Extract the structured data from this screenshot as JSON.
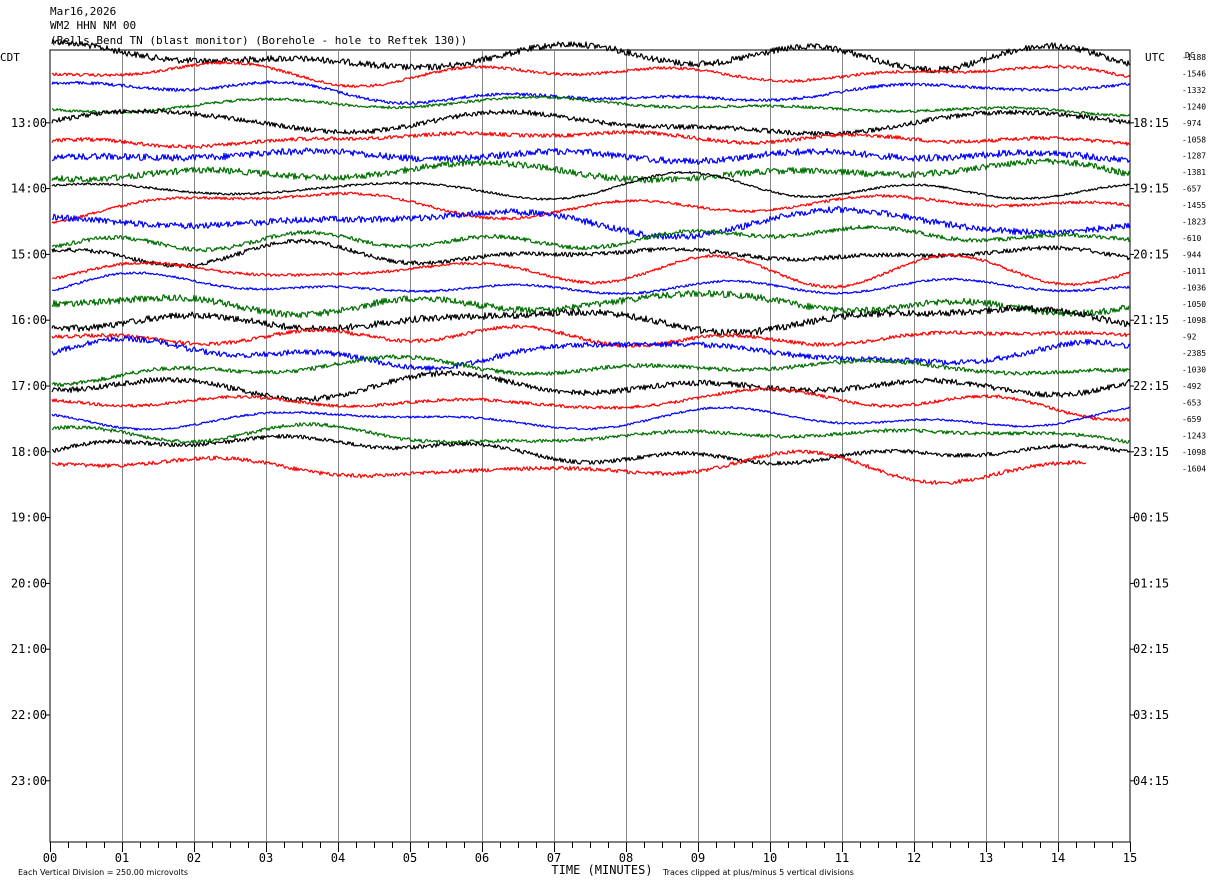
{
  "header": {
    "date": "Mar16,2026",
    "station": "WM2 HHN NM 00",
    "location": "(Bells Bend TN (blast monitor) (Borehole - hole to Reftek 130))"
  },
  "chart_data": {
    "type": "line",
    "title": "",
    "left_axis_label": "CDT",
    "right_axis_label": "UTC",
    "dc_header": "DC",
    "xlabel": "TIME (MINUTES)",
    "xlim": [
      0,
      15
    ],
    "x_ticks": [
      "00",
      "01",
      "02",
      "03",
      "04",
      "05",
      "06",
      "07",
      "08",
      "09",
      "10",
      "11",
      "12",
      "13",
      "14",
      "15"
    ],
    "left_hour_labels": [
      "13:00",
      "14:00",
      "15:00",
      "16:00",
      "17:00",
      "18:00",
      "19:00",
      "20:00",
      "21:00",
      "22:00",
      "23:00"
    ],
    "right_hour_labels": [
      "18:15",
      "19:15",
      "20:15",
      "21:15",
      "22:15",
      "23:15",
      "00:15",
      "01:15",
      "02:15",
      "03:15",
      "04:15"
    ],
    "trace_row_start": "12:15",
    "trace_row_interval_minutes": 15,
    "trace_colors": [
      "#000000",
      "#ff0000",
      "#0000ff",
      "#007000"
    ],
    "dc_offsets": [
      "-1188",
      "-1546",
      "-1332",
      "-1240",
      "-974",
      "-1058",
      "-1287",
      "-1381",
      "-657",
      "-1455",
      "-1823",
      "-610",
      "-944",
      "-1011",
      "-1036",
      "-1050",
      "-1098",
      "-92",
      "-2385",
      "-1030",
      "-492",
      "-653",
      "-659",
      "-1243",
      "-1098",
      "-1604"
    ],
    "traces_recorded": 26,
    "last_trace_end_minute": 14.4,
    "grid": true,
    "footer_scale": "Each Vertical Division =  250.00 microvolts",
    "footer_clip": "Traces clipped at plus/minus 5 vertical divisions"
  }
}
